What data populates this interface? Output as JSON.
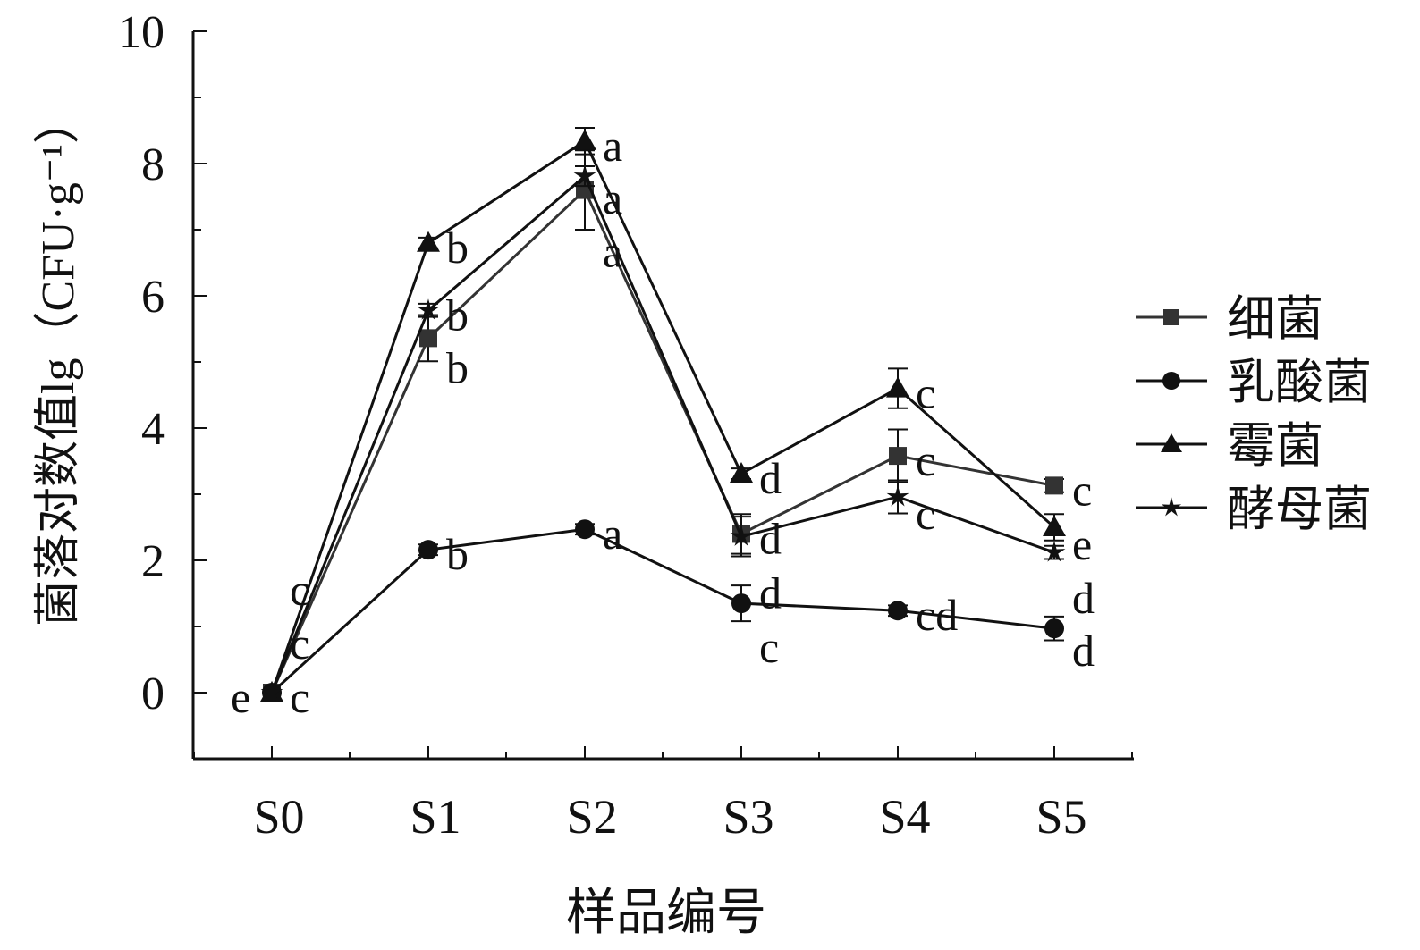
{
  "chart_data": {
    "type": "line",
    "title": "",
    "xlabel": "样品编号",
    "ylabel": "菌落对数值lg（CFU·g⁻¹）",
    "ylim": [
      -1,
      10
    ],
    "yticks": [
      0,
      2,
      4,
      6,
      8,
      10
    ],
    "categories": [
      "S0",
      "S1",
      "S2",
      "S3",
      "S4",
      "S5"
    ],
    "legend_position": "right",
    "series": [
      {
        "name": "细菌",
        "marker": "square",
        "color": "#333333",
        "values": [
          0,
          5.36,
          7.6,
          2.4,
          3.58,
          3.13
        ],
        "errors": [
          0,
          0.35,
          0.6,
          0.3,
          0.4,
          0.1
        ],
        "letters": [
          "c",
          "b",
          "a",
          "d",
          "c",
          "c"
        ]
      },
      {
        "name": "乳酸菌",
        "marker": "circle",
        "color": "#111111",
        "values": [
          0,
          2.16,
          2.47,
          1.35,
          1.24,
          0.97
        ],
        "errors": [
          0,
          0.08,
          0.08,
          0.27,
          0.08,
          0.18
        ],
        "letters": [
          "e",
          "b",
          "a",
          "c",
          "cd",
          "d"
        ]
      },
      {
        "name": "霉菌",
        "marker": "triangle",
        "color": "#111111",
        "values": [
          0,
          6.8,
          8.34,
          3.31,
          4.6,
          2.5
        ],
        "errors": [
          0,
          0.08,
          0.2,
          0.08,
          0.3,
          0.2
        ],
        "letters": [
          "c",
          "b",
          "a",
          "d",
          "c",
          "e"
        ]
      },
      {
        "name": "酵母菌",
        "marker": "star",
        "color": "#111111",
        "values": [
          0,
          5.78,
          7.81,
          2.36,
          2.96,
          2.12
        ],
        "errors": [
          0,
          0.1,
          0.15,
          0.3,
          0.25,
          0.1
        ],
        "letters": [
          "c",
          "b",
          "a",
          "d",
          "c",
          "d"
        ]
      }
    ]
  }
}
